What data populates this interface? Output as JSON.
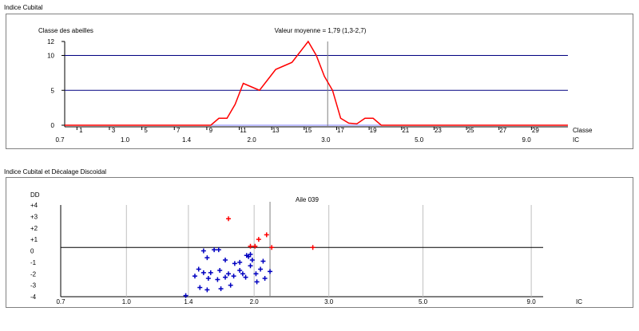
{
  "chart1": {
    "section_title": "Indice Cubital",
    "y_axis_title": "Classe des abeilles",
    "x_axis_title": "Classe",
    "x2_axis_title": "IC",
    "annotation": "Valeur moyenne = 1,79 (1,3-2,7)",
    "y_ticks": [
      "12",
      "10",
      "5",
      "0"
    ],
    "class_ticks": [
      "1",
      "3",
      "5",
      "7",
      "9",
      "11",
      "13",
      "15",
      "17",
      "19",
      "21",
      "23",
      "25",
      "27",
      "29"
    ],
    "ic_ticks": [
      "0.7",
      "1.0",
      "1.4",
      "2.0",
      "3.0",
      "5.0",
      "9.0"
    ]
  },
  "chart2": {
    "section_title": "Indice Cubital et Décalage Discoidal",
    "y_axis_title": "DD",
    "x_axis_title": "IC",
    "annotation": "Aile 039",
    "y_ticks": [
      "+4",
      "+3",
      "+2",
      "+1",
      "0",
      "-1",
      "-2",
      "-3",
      "-4"
    ],
    "ic_ticks": [
      "0.7",
      "1.0",
      "1.4",
      "2.0",
      "3.0",
      "5.0",
      "9.0"
    ]
  },
  "colors": {
    "histogram": "#ff0000",
    "reference_line": "#000080",
    "negative_points": "#0000c0",
    "positive_points": "#ff0000",
    "mean_line": "#808080"
  },
  "chart_data": [
    {
      "type": "line",
      "title": "Indice Cubital",
      "ylabel": "Classe des abeilles",
      "xlabel": "Classe",
      "secondary_xlabel": "IC",
      "ylim": [
        0,
        12
      ],
      "xlim": [
        0,
        31
      ],
      "grid": false,
      "reference_lines_y": [
        5,
        10
      ],
      "mean_class": 16.2,
      "series": [
        {
          "x": [
            0,
            8,
            9,
            9.5,
            10,
            10.5,
            11,
            11.5,
            12,
            12.5,
            13,
            13.5,
            14,
            14.5,
            15,
            15.5,
            16,
            16.5,
            17,
            17.5,
            18,
            18.5,
            19,
            19.5,
            20,
            31
          ],
          "y": [
            0,
            0,
            0,
            1,
            1,
            3,
            6,
            5.5,
            5,
            6.5,
            8,
            8.5,
            9,
            10.5,
            12,
            10,
            7,
            5,
            1,
            0.3,
            0.2,
            1,
            1,
            0,
            0,
            0
          ]
        }
      ]
    },
    {
      "type": "scatter",
      "title": "Indice Cubital et Décalage Discoidal",
      "ylabel": "DD",
      "xlabel": "IC",
      "annotation": "Aile 039",
      "ylim": [
        -4,
        4
      ],
      "x_scale": "log",
      "x_ticks": [
        0.7,
        1.0,
        1.4,
        2.0,
        3.0,
        5.0,
        9.0
      ],
      "mean_x": 2.18,
      "horizontal_line_y": 0.3,
      "series": [
        {
          "color": "#ff0000",
          "points": [
            [
              1.74,
              2.8
            ],
            [
              2.05,
              1.0
            ],
            [
              2.14,
              1.4
            ],
            [
              1.96,
              0.4
            ],
            [
              2.01,
              0.4
            ],
            [
              2.2,
              0.3
            ],
            [
              2.75,
              0.3
            ]
          ]
        },
        {
          "color": "#0000c0",
          "points": [
            [
              1.52,
              0.0
            ],
            [
              1.61,
              0.1
            ],
            [
              1.65,
              0.1
            ],
            [
              1.92,
              -0.4
            ],
            [
              1.96,
              -0.3
            ],
            [
              1.94,
              -0.5
            ],
            [
              1.98,
              -0.8
            ],
            [
              2.1,
              -0.9
            ],
            [
              1.55,
              -0.6
            ],
            [
              1.71,
              -0.8
            ],
            [
              1.8,
              -1.1
            ],
            [
              1.85,
              -1.0
            ],
            [
              1.96,
              -1.3
            ],
            [
              2.07,
              -1.6
            ],
            [
              2.18,
              -1.8
            ],
            [
              1.48,
              -1.6
            ],
            [
              1.52,
              -1.9
            ],
            [
              1.58,
              -1.9
            ],
            [
              1.66,
              -1.7
            ],
            [
              1.74,
              -2.0
            ],
            [
              1.85,
              -1.7
            ],
            [
              1.88,
              -2.0
            ],
            [
              1.91,
              -2.3
            ],
            [
              2.02,
              -2.0
            ],
            [
              2.12,
              -2.4
            ],
            [
              1.45,
              -2.2
            ],
            [
              1.56,
              -2.4
            ],
            [
              1.64,
              -2.5
            ],
            [
              1.71,
              -2.3
            ],
            [
              1.79,
              -2.2
            ],
            [
              2.03,
              -2.7
            ],
            [
              1.49,
              -3.2
            ],
            [
              1.55,
              -3.4
            ],
            [
              1.67,
              -3.3
            ],
            [
              1.76,
              -3.0
            ],
            [
              1.38,
              -3.9
            ]
          ]
        }
      ]
    }
  ]
}
